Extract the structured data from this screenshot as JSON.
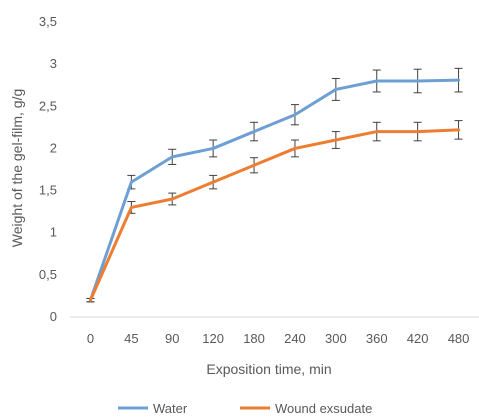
{
  "chart_data": {
    "type": "line",
    "title": "",
    "xlabel": "Exposition time, min",
    "ylabel": "Weight of the gel-film, g/g",
    "categories": [
      "0",
      "45",
      "90",
      "120",
      "180",
      "240",
      "300",
      "360",
      "420",
      "480"
    ],
    "y_ticks": [
      "0",
      "0,5",
      "1",
      "1,5",
      "2",
      "2,5",
      "3",
      "3,5"
    ],
    "ylim": [
      0,
      3.5
    ],
    "grid": false,
    "legend_position": "bottom",
    "series": [
      {
        "name": "Water",
        "color": "#6e9fd4",
        "values": [
          0.2,
          1.6,
          1.9,
          2.0,
          2.2,
          2.4,
          2.7,
          2.8,
          2.8,
          2.81
        ],
        "error": [
          0.02,
          0.08,
          0.09,
          0.1,
          0.11,
          0.12,
          0.13,
          0.13,
          0.14,
          0.14
        ]
      },
      {
        "name": "Wound exsudate",
        "color": "#ed7d31",
        "values": [
          0.2,
          1.3,
          1.4,
          1.6,
          1.8,
          2.0,
          2.1,
          2.2,
          2.2,
          2.22
        ],
        "error": [
          0.02,
          0.07,
          0.07,
          0.08,
          0.09,
          0.1,
          0.1,
          0.11,
          0.11,
          0.11
        ]
      }
    ]
  }
}
